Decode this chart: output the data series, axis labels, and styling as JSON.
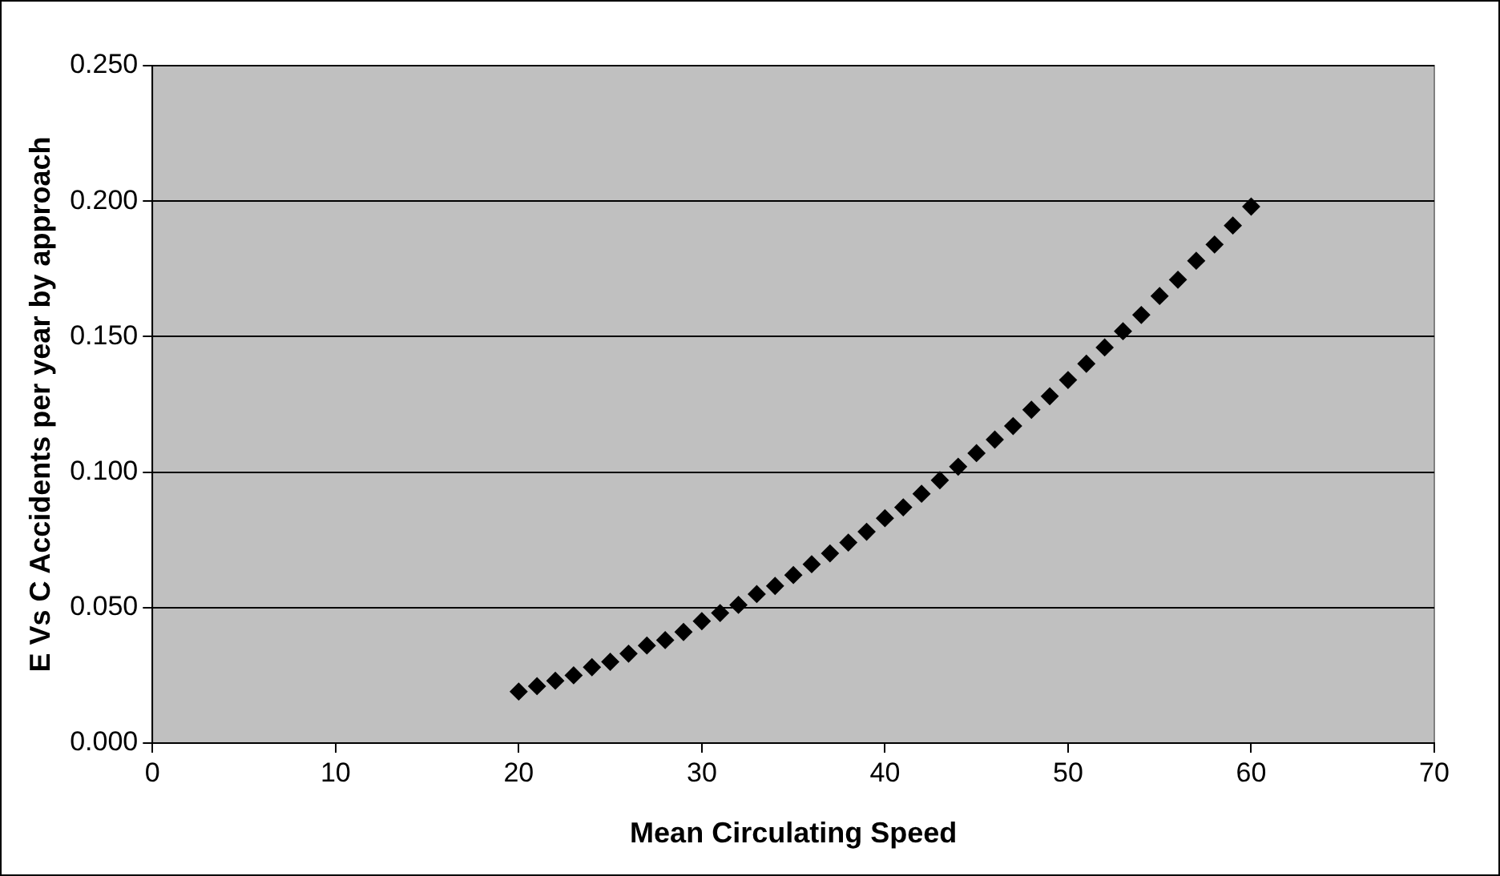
{
  "chart_data": {
    "type": "scatter",
    "xlabel": "Mean Circulating Speed",
    "ylabel": "E Vs C Accidents per year by approach",
    "x": [
      20,
      21,
      22,
      23,
      24,
      25,
      26,
      27,
      28,
      29,
      30,
      31,
      32,
      33,
      34,
      35,
      36,
      37,
      38,
      39,
      40,
      41,
      42,
      43,
      44,
      45,
      46,
      47,
      48,
      49,
      50,
      51,
      52,
      53,
      54,
      55,
      56,
      57,
      58,
      59,
      60
    ],
    "series": [
      {
        "color": "#000000",
        "values": [
          0.019,
          0.021,
          0.023,
          0.025,
          0.028,
          0.03,
          0.033,
          0.036,
          0.038,
          0.041,
          0.045,
          0.048,
          0.051,
          0.055,
          0.058,
          0.062,
          0.066,
          0.07,
          0.074,
          0.078,
          0.083,
          0.087,
          0.092,
          0.097,
          0.102,
          0.107,
          0.112,
          0.117,
          0.123,
          0.128,
          0.134,
          0.14,
          0.146,
          0.152,
          0.158,
          0.165,
          0.171,
          0.178,
          0.184,
          0.191,
          0.198
        ]
      }
    ],
    "xlim": [
      0,
      70
    ],
    "xticks": [
      0,
      10,
      20,
      30,
      40,
      50,
      60,
      70
    ],
    "ylim": [
      0,
      0.25
    ],
    "yticks": [
      {
        "value": 0,
        "label": "0.000"
      },
      {
        "value": 0.05,
        "label": "0.050"
      },
      {
        "value": 0.1,
        "label": "0.100"
      },
      {
        "value": 0.15,
        "label": "0.150"
      },
      {
        "value": 0.2,
        "label": "0.200"
      },
      {
        "value": 0.25,
        "label": "0.250"
      }
    ],
    "grid": "y",
    "legend": false,
    "marker": "diamond"
  }
}
